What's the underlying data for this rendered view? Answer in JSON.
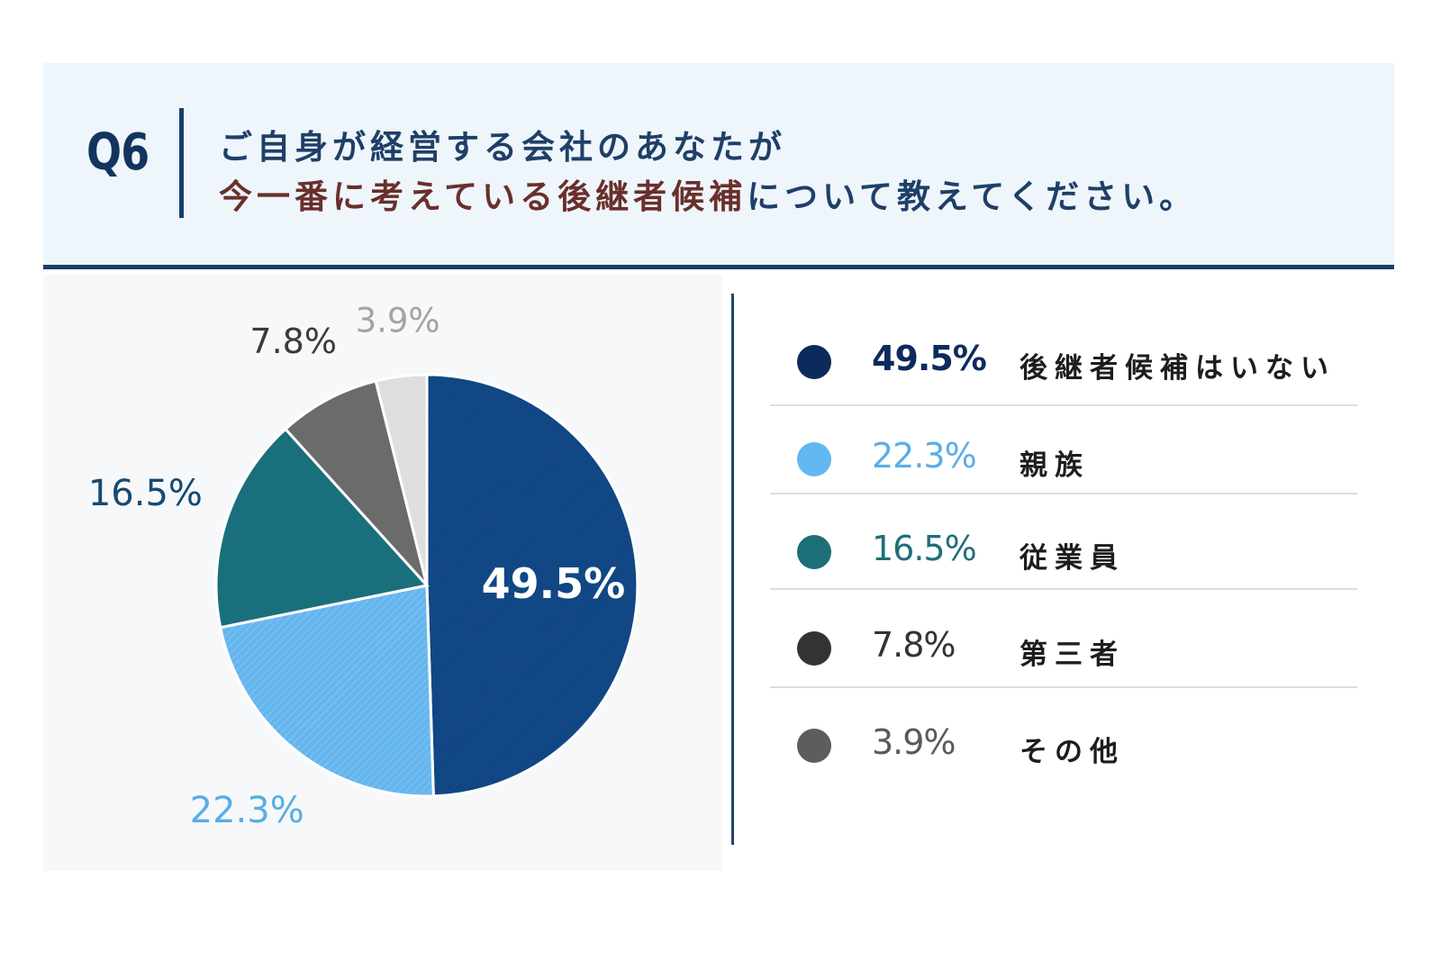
{
  "question": {
    "number": "Q6",
    "line1": "ご自身が経営する会社のあなたが",
    "line2_highlight": "今一番に考えている後継者候補",
    "line2_rest": "について教えてください。"
  },
  "colors": {
    "primary": "#0f4683",
    "header_bg": "#eef6fb",
    "highlight_text": "#6a2f2b"
  },
  "chart_data": {
    "type": "pie",
    "unit": "%",
    "slices": [
      {
        "label": "後継者候補はいない",
        "value": 49.5,
        "display": "49.5%",
        "color": "#0f4683",
        "label_color": "#ffffff",
        "dot_color": "#0c2a5c",
        "legend_value_color": "#0c2a5c"
      },
      {
        "label": "親族",
        "value": 22.3,
        "display": "22.3%",
        "color": "#65b6ee",
        "label_color": "#58ade6",
        "dot_color": "#62b8f2",
        "legend_value_color": "#5aaee8"
      },
      {
        "label": "従業員",
        "value": 16.5,
        "display": "16.5%",
        "color": "#1a6f7c",
        "label_color": "#154a72",
        "dot_color": "#1c6e78",
        "legend_value_color": "#1f6f78"
      },
      {
        "label": "第三者",
        "value": 7.8,
        "display": "7.8%",
        "color": "#6b6b6b",
        "label_color": "#3a3a3a",
        "dot_color": "#333333",
        "legend_value_color": "#333333"
      },
      {
        "label": "その他",
        "value": 3.9,
        "display": "3.9%",
        "color": "#dedede",
        "label_color": "#a3a3a3",
        "dot_color": "#5d5d5d",
        "legend_value_color": "#5a5a5a"
      }
    ]
  }
}
